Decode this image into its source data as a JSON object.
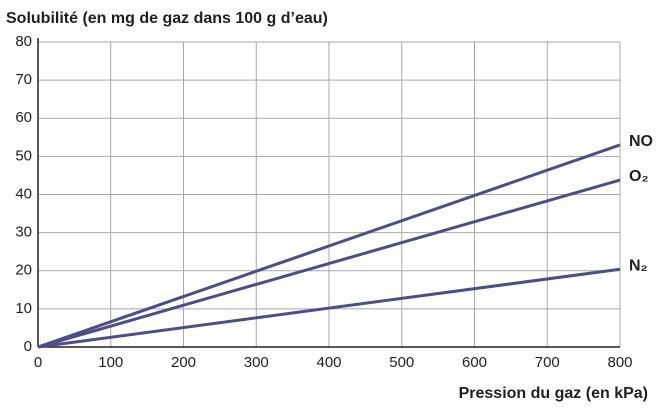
{
  "chart_data": {
    "type": "line",
    "title": "Solubilité (en mg de gaz dans 100 g d’eau)",
    "x_label": "Pression du gaz (en kPa)",
    "x": [
      0,
      800
    ],
    "series": [
      {
        "name": "NO",
        "color": "#4e4d8c",
        "values": [
          0,
          53
        ]
      },
      {
        "name": "O₂",
        "color": "#4e4d8c",
        "values": [
          0,
          43.8
        ]
      },
      {
        "name": "N₂",
        "color": "#4e4d8c",
        "values": [
          0,
          20.4
        ]
      }
    ],
    "xlim": [
      0,
      800
    ],
    "xticks": [
      0,
      100,
      200,
      300,
      400,
      500,
      600,
      700,
      800
    ],
    "ylim": [
      0,
      80
    ],
    "yticks": [
      0,
      10,
      20,
      30,
      40,
      50,
      60,
      70,
      80
    ],
    "grid": true
  }
}
